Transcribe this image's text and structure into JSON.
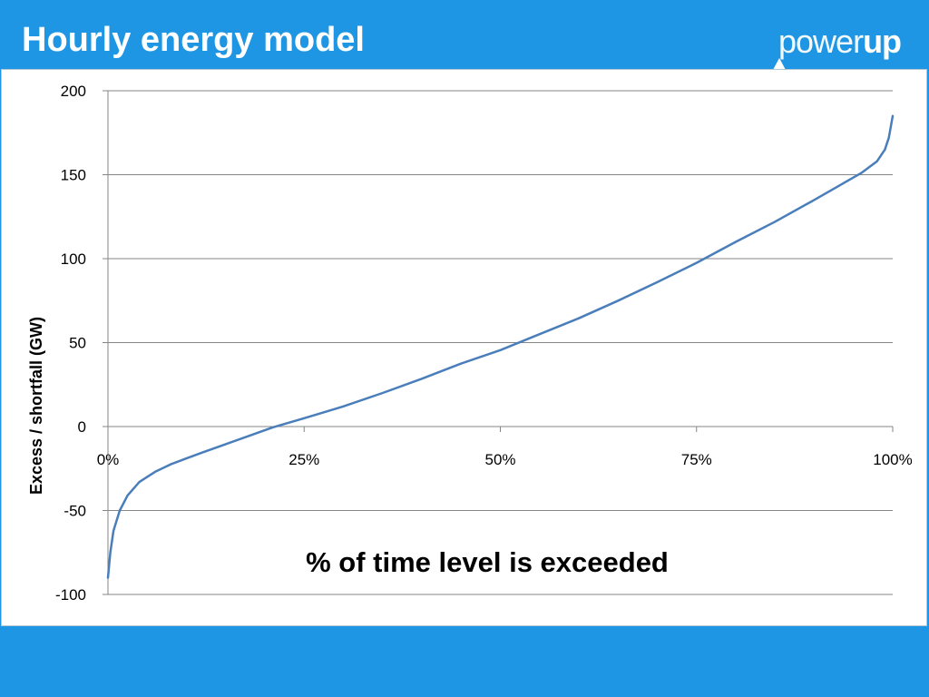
{
  "header": {
    "title": "Hourly energy model",
    "logo_light": "power",
    "logo_bold": "up"
  },
  "colors": {
    "background": "#1f96e3",
    "line": "#4a7ebb",
    "grid": "#868686",
    "text": "#000000"
  },
  "chart_data": {
    "type": "line",
    "title": "",
    "xlabel": "% of time level is exceeded",
    "ylabel": "Excess / shortfall (GW)",
    "xlim": [
      0,
      100
    ],
    "ylim": [
      -100,
      200
    ],
    "xticks": [
      0,
      25,
      50,
      75,
      100
    ],
    "xtick_labels": [
      "0%",
      "25%",
      "50%",
      "75%",
      "100%"
    ],
    "yticks": [
      200,
      150,
      100,
      50,
      0,
      -50,
      -100
    ],
    "ytick_labels": [
      "200",
      "150",
      "100",
      "50",
      "0",
      "-50",
      "-100"
    ],
    "grid": true,
    "legend": "none",
    "series": [
      {
        "x": [
          0,
          0.3,
          0.7,
          1.5,
          2.5,
          4,
          6,
          8,
          10,
          12,
          15,
          18,
          21,
          25,
          30,
          35,
          40,
          45,
          50,
          55,
          60,
          65,
          70,
          75,
          80,
          85,
          90,
          93,
          96,
          98,
          99,
          99.5,
          100
        ],
        "values": [
          -90,
          -75,
          -62,
          -50,
          -41,
          -33,
          -27,
          -22.5,
          -19,
          -15.5,
          -10.5,
          -5.5,
          -0.5,
          5,
          12,
          20,
          28.5,
          37.5,
          45.5,
          55,
          64.5,
          75,
          86,
          97.5,
          110,
          122,
          135,
          143,
          151,
          158,
          165,
          172,
          185
        ]
      }
    ]
  }
}
